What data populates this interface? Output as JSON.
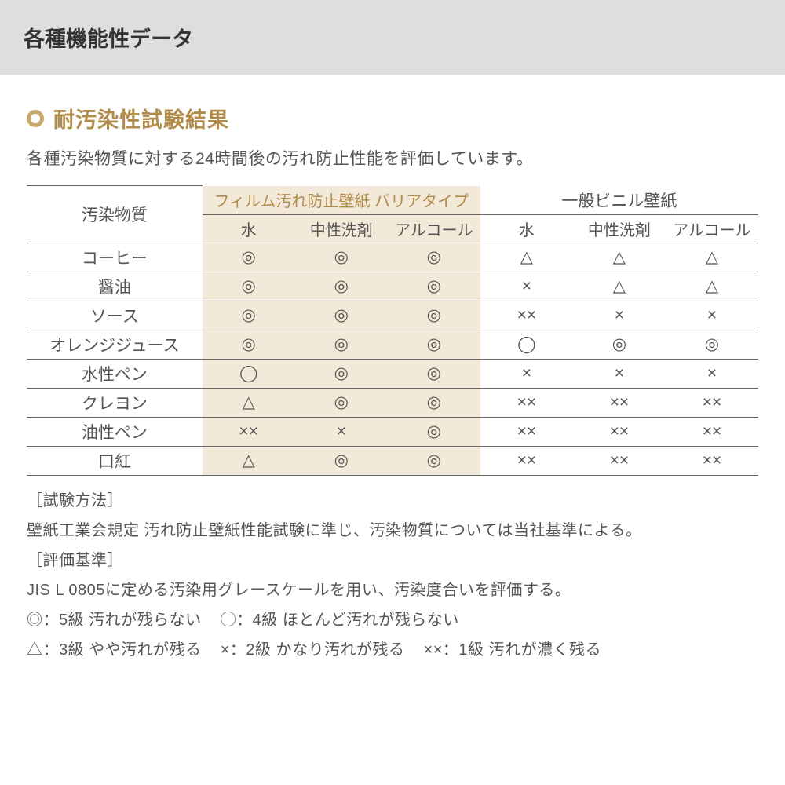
{
  "header": {
    "title": "各種機能性データ"
  },
  "section": {
    "title": "耐汚染性試験結果",
    "intro": "各種汚染物質に対する24時間後の汚れ防止性能を評価しています。"
  },
  "colors": {
    "header_bg": "#dedede",
    "accent": "#b18b4a",
    "bullet": "#c8a96d",
    "tint_bg": "#f3e9d9",
    "text": "#555555",
    "border": "#666666"
  },
  "table": {
    "rowhead_label": "汚染物質",
    "group_left": "フィルム汚れ防止壁紙 バリアタイプ",
    "group_right": "一般ビニル壁紙",
    "subcols": [
      "水",
      "中性洗剤",
      "アルコール"
    ],
    "rows": [
      {
        "label": "コーヒー",
        "cells": [
          "◎",
          "◎",
          "◎",
          "△",
          "△",
          "△"
        ]
      },
      {
        "label": "醤油",
        "cells": [
          "◎",
          "◎",
          "◎",
          "×",
          "△",
          "△"
        ]
      },
      {
        "label": "ソース",
        "cells": [
          "◎",
          "◎",
          "◎",
          "××",
          "×",
          "×"
        ]
      },
      {
        "label": "オレンジジュース",
        "cells": [
          "◎",
          "◎",
          "◎",
          "◯",
          "◎",
          "◎"
        ]
      },
      {
        "label": "水性ペン",
        "cells": [
          "◯",
          "◎",
          "◎",
          "×",
          "×",
          "×"
        ]
      },
      {
        "label": "クレヨン",
        "cells": [
          "△",
          "◎",
          "◎",
          "××",
          "××",
          "××"
        ]
      },
      {
        "label": "油性ペン",
        "cells": [
          "××",
          "×",
          "◎",
          "××",
          "××",
          "××"
        ]
      },
      {
        "label": "口紅",
        "cells": [
          "△",
          "◎",
          "◎",
          "××",
          "××",
          "××"
        ]
      }
    ]
  },
  "notes": {
    "method_label": "［試験方法］",
    "method_text": "壁紙工業会規定 汚れ防止壁紙性能試験に準じ、汚染物質については当社基準による。",
    "criteria_label": "［評価基準］",
    "criteria_text": "JIS L 0805に定める汚染用グレースケールを用い、汚染度合いを評価する。",
    "legend": [
      "◎：5級 汚れが残らない",
      "◯：4級 ほとんど汚れが残らない",
      "△：3級 やや汚れが残る",
      "×：2級 かなり汚れが残る",
      "××：1級 汚れが濃く残る"
    ]
  }
}
